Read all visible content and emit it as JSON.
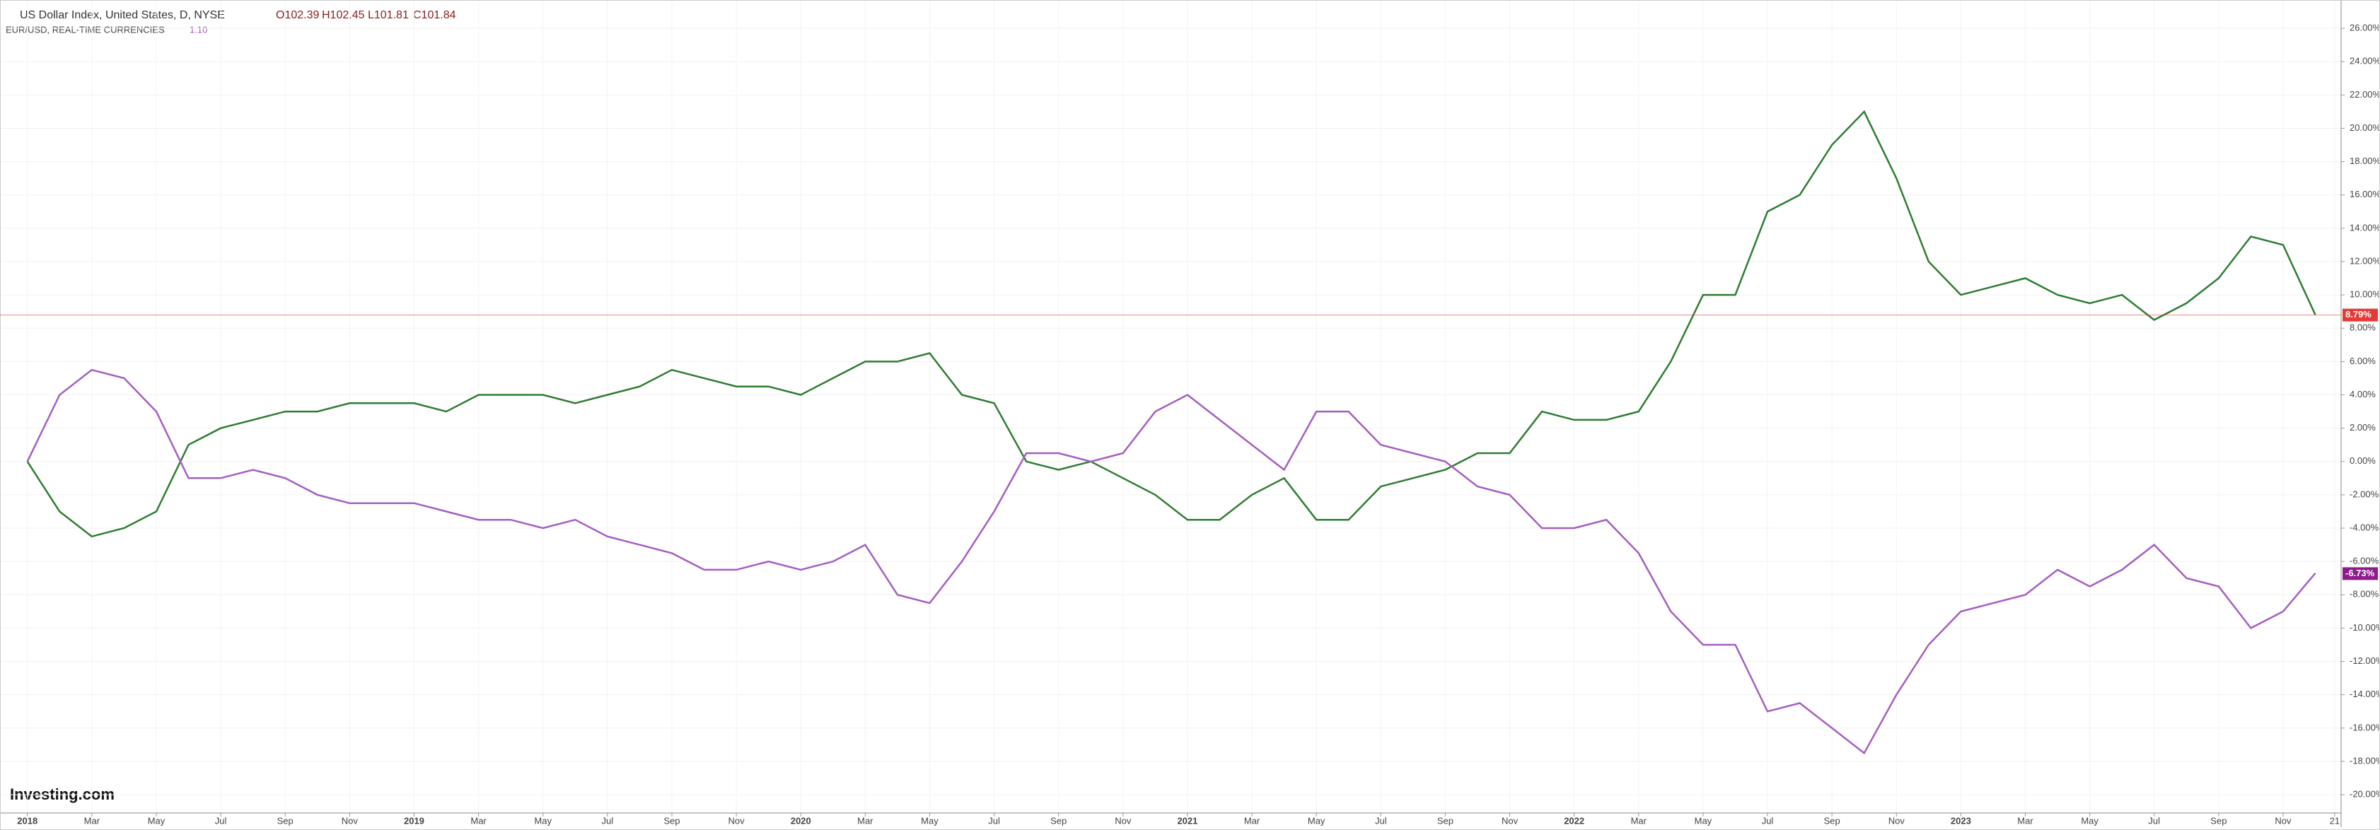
{
  "chart_data": {
    "type": "line",
    "header": {
      "title": "US Dollar Index, United States, D, NYSE",
      "open": "O102.39",
      "high": "H102.45",
      "low": "L101.81",
      "close": "C101.84",
      "subtitle": "EUR/USD, REAL-TIME CURRENCIES",
      "subtitle_value": "1.10"
    },
    "logo": "Investing.com",
    "x": [
      0,
      1,
      2,
      3,
      4,
      5,
      6,
      7,
      8,
      9,
      10,
      11,
      12,
      13,
      14,
      15,
      16,
      17,
      18,
      19,
      20,
      21,
      22,
      23,
      24,
      25,
      26,
      27,
      28,
      29,
      30,
      31,
      32,
      33,
      34,
      35,
      36,
      37,
      38,
      39,
      40,
      41,
      42,
      43,
      44,
      45,
      46,
      47,
      48,
      49,
      50,
      51,
      52,
      53,
      54,
      55,
      56,
      57,
      58,
      59,
      60,
      61,
      62,
      63,
      64,
      65,
      66,
      67,
      68,
      69,
      70,
      71
    ],
    "series": [
      {
        "name": "US Dollar Index",
        "color": "#2e7d32",
        "values": [
          0,
          -3,
          -4.5,
          -4,
          -3,
          1,
          2,
          2.5,
          3,
          3,
          3.5,
          3.5,
          3.5,
          3,
          4,
          4,
          4,
          3.5,
          4,
          4.5,
          5.5,
          5,
          4.5,
          4.5,
          4,
          5,
          6,
          6,
          6.5,
          4,
          3.5,
          0,
          -0.5,
          0,
          -1,
          -2,
          -3.5,
          -3.5,
          -2,
          -1,
          -3.5,
          -3.5,
          -1.5,
          -1,
          -0.5,
          0.5,
          0.5,
          3,
          2.5,
          2.5,
          3,
          6,
          10,
          10,
          15,
          16,
          19,
          21,
          17,
          12,
          10,
          10.5,
          11,
          10,
          9.5,
          10,
          8.5,
          9.5,
          11,
          13.5,
          13,
          8.8
        ]
      },
      {
        "name": "EUR/USD",
        "color": "#a55ec0",
        "values": [
          0,
          4,
          5.5,
          5,
          3,
          -1,
          -1,
          -0.5,
          -1,
          -2,
          -2.5,
          -2.5,
          -2.5,
          -3,
          -3.5,
          -3.5,
          -4,
          -3.5,
          -4.5,
          -5,
          -5.5,
          -6.5,
          -6.5,
          -6,
          -6.5,
          -6,
          -5,
          -8,
          -8.5,
          -6,
          -3,
          0.5,
          0.5,
          0,
          0.5,
          3,
          4,
          2.5,
          1,
          -0.5,
          3,
          3,
          1,
          0.5,
          0,
          -1.5,
          -2,
          -4,
          -4,
          -3.5,
          -5.5,
          -9,
          -11,
          -11,
          -15,
          -14.5,
          -16,
          -17.5,
          -14,
          -11,
          -9,
          -8.5,
          -8,
          -6.5,
          -7.5,
          -6.5,
          -5,
          -7,
          -7.5,
          -10,
          -9,
          -6.7
        ]
      }
    ],
    "price_lines": [
      {
        "value": 8.79,
        "label": "8.79%",
        "color": "#e53935"
      },
      {
        "value": -6.73,
        "label": "-6.73%",
        "color": "#8e1a8e"
      }
    ],
    "xlim": [
      -0.85,
      71.8
    ],
    "xticks": [
      {
        "value": 0,
        "label": "2018"
      },
      {
        "value": 2,
        "label": "Mar"
      },
      {
        "value": 4,
        "label": "May"
      },
      {
        "value": 6,
        "label": "Jul"
      },
      {
        "value": 8,
        "label": "Sep"
      },
      {
        "value": 10,
        "label": "Nov"
      },
      {
        "value": 12,
        "label": "2019"
      },
      {
        "value": 14,
        "label": "Mar"
      },
      {
        "value": 16,
        "label": "May"
      },
      {
        "value": 18,
        "label": "Jul"
      },
      {
        "value": 20,
        "label": "Sep"
      },
      {
        "value": 22,
        "label": "Nov"
      },
      {
        "value": 24,
        "label": "2020"
      },
      {
        "value": 26,
        "label": "Mar"
      },
      {
        "value": 28,
        "label": "May"
      },
      {
        "value": 30,
        "label": "Jul"
      },
      {
        "value": 32,
        "label": "Sep"
      },
      {
        "value": 34,
        "label": "Nov"
      },
      {
        "value": 36,
        "label": "2021"
      },
      {
        "value": 38,
        "label": "Mar"
      },
      {
        "value": 40,
        "label": "May"
      },
      {
        "value": 42,
        "label": "Jul"
      },
      {
        "value": 44,
        "label": "Sep"
      },
      {
        "value": 46,
        "label": "Nov"
      },
      {
        "value": 48,
        "label": "2022"
      },
      {
        "value": 50,
        "label": "Mar"
      },
      {
        "value": 52,
        "label": "May"
      },
      {
        "value": 54,
        "label": "Jul"
      },
      {
        "value": 56,
        "label": "Sep"
      },
      {
        "value": 58,
        "label": "Nov"
      },
      {
        "value": 60,
        "label": "2023"
      },
      {
        "value": 62,
        "label": "Mar"
      },
      {
        "value": 64,
        "label": "May"
      },
      {
        "value": 66,
        "label": "Jul"
      },
      {
        "value": 68,
        "label": "Sep"
      },
      {
        "value": 70,
        "label": "Nov"
      },
      {
        "value": 71.6,
        "label": "21"
      }
    ],
    "ylim": [
      -21.1,
      27.7
    ],
    "yticks": [
      {
        "value": 26,
        "label": "26.00%"
      },
      {
        "value": 24,
        "label": "24.00%"
      },
      {
        "value": 22,
        "label": "22.00%"
      },
      {
        "value": 20,
        "label": "20.00%"
      },
      {
        "value": 18,
        "label": "18.00%"
      },
      {
        "value": 16,
        "label": "16.00%"
      },
      {
        "value": 14,
        "label": "14.00%"
      },
      {
        "value": 12,
        "label": "12.00%"
      },
      {
        "value": 10,
        "label": "10.00%"
      },
      {
        "value": 8,
        "label": "8.00%"
      },
      {
        "value": 6,
        "label": "6.00%"
      },
      {
        "value": 4,
        "label": "4.00%"
      },
      {
        "value": 2,
        "label": "2.00%"
      },
      {
        "value": 0,
        "label": "0.00%"
      },
      {
        "value": -2,
        "label": "-2.00%"
      },
      {
        "value": -4,
        "label": "-4.00%"
      },
      {
        "value": -6,
        "label": "-6.00%"
      },
      {
        "value": -8,
        "label": "-8.00%"
      },
      {
        "value": -10,
        "label": "-10.00%"
      },
      {
        "value": -12,
        "label": "-12.00%"
      },
      {
        "value": -14,
        "label": "-14.00%"
      },
      {
        "value": -16,
        "label": "-16.00%"
      },
      {
        "value": -18,
        "label": "-18.00%"
      },
      {
        "value": -20,
        "label": "-20.00%"
      }
    ],
    "grid": true
  }
}
